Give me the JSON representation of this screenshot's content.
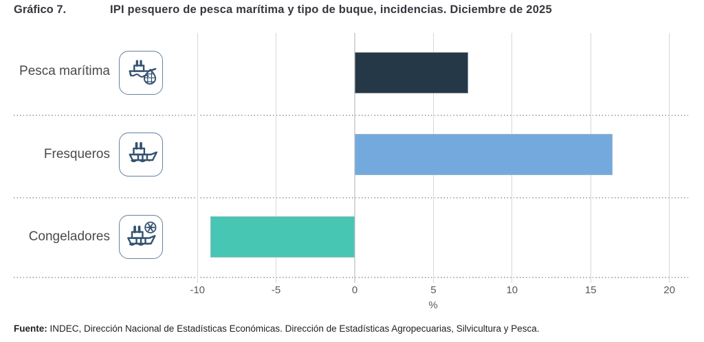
{
  "header": {
    "figure_label": "Gráfico 7."
  },
  "chart_data": {
    "type": "bar",
    "orientation": "horizontal",
    "title": "IPI pesquero de pesca marítima y tipo de buque, incidencias. Diciembre de 2025",
    "categories": [
      "Pesca marítima",
      "Fresqueros",
      "Congeladores"
    ],
    "values": [
      7.2,
      16.4,
      -9.2
    ],
    "unit": "%",
    "xlabel": "%",
    "xlim": [
      -10,
      20
    ],
    "xticks": [
      -10,
      -5,
      0,
      5,
      10,
      15,
      20
    ],
    "bar_colors": [
      "#253847",
      "#73a9dc",
      "#47c6b3"
    ],
    "grid": "vertical solid gridlines at each tick; dotted horizontal row separators; no legend; no value labels",
    "icons": [
      "fishing-boat-with-net-icon",
      "fresh-fishing-boat-icon",
      "freezer-boat-snowflake-icon"
    ]
  },
  "footer": {
    "source_label": "Fuente:",
    "source_text": " INDEC, Dirección Nacional de Estadísticas Económicas. Dirección de Estadísticas Agropecuarias, Silvicultura y Pesca."
  }
}
